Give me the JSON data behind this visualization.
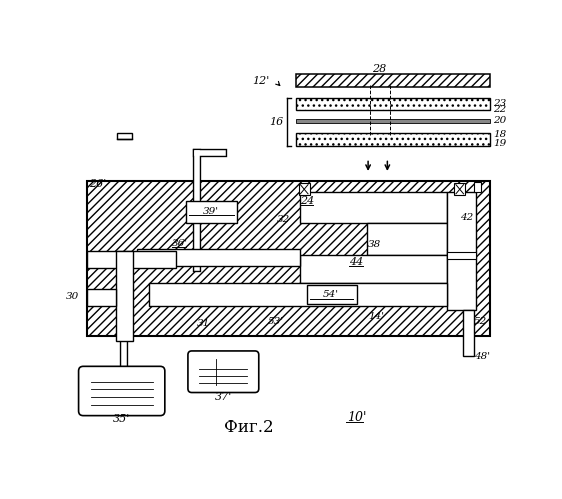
{
  "bg_color": "#ffffff",
  "figsize": [
    5.62,
    4.99
  ],
  "dpi": 100
}
